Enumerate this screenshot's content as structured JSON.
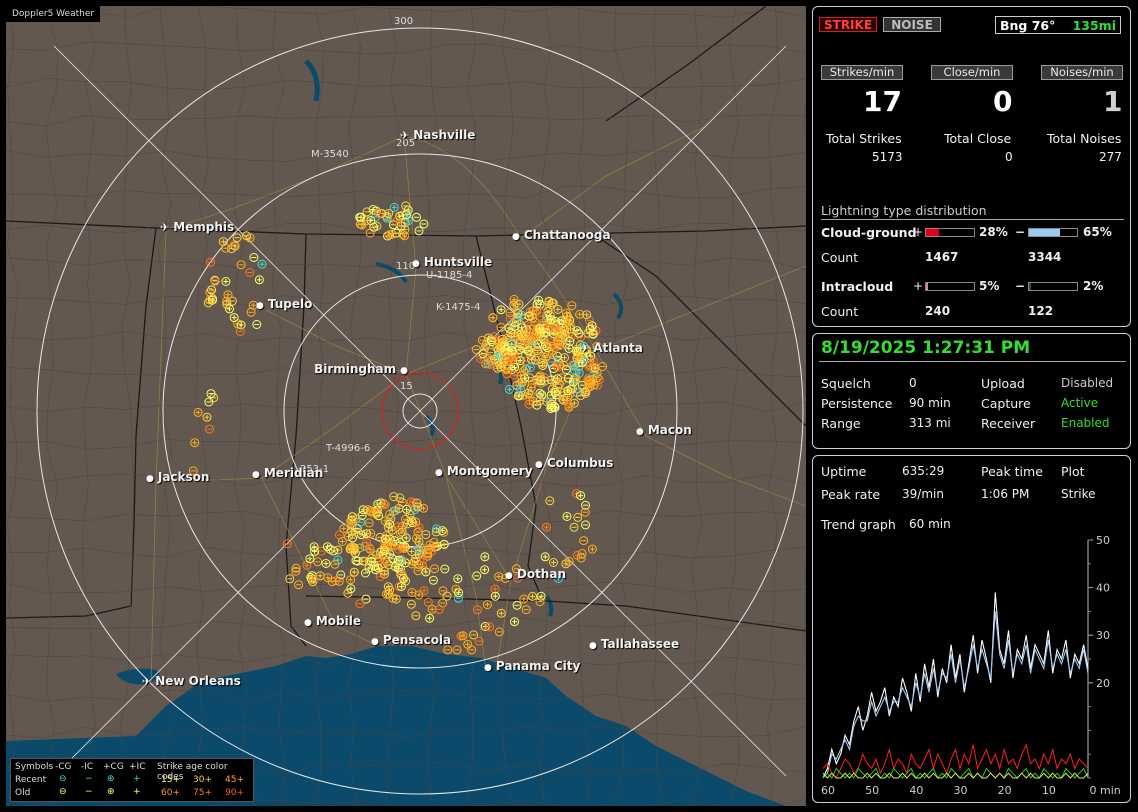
{
  "app": {
    "title": "Doppler5 Weather"
  },
  "map": {
    "range_labels": [
      "300",
      "205",
      "110",
      "15"
    ],
    "cities": [
      {
        "name": "Nashville",
        "airport": true
      },
      {
        "name": "Chattanooga",
        "airport": false
      },
      {
        "name": "Memphis",
        "airport": true
      },
      {
        "name": "Huntsville",
        "airport": false
      },
      {
        "name": "Tupelo",
        "airport": false
      },
      {
        "name": "Birmingham",
        "airport": false
      },
      {
        "name": "Atlanta",
        "airport": true
      },
      {
        "name": "Macon",
        "airport": false
      },
      {
        "name": "Jackson",
        "airport": false
      },
      {
        "name": "Meridian",
        "airport": false
      },
      {
        "name": "Montgomery",
        "airport": false
      },
      {
        "name": "Columbus",
        "airport": false
      },
      {
        "name": "Dothan",
        "airport": false
      },
      {
        "name": "Mobile",
        "airport": false
      },
      {
        "name": "Pensacola",
        "airport": false
      },
      {
        "name": "Tallahassee",
        "airport": false
      },
      {
        "name": "Panama City",
        "airport": false
      },
      {
        "name": "New Orleans",
        "airport": true
      }
    ],
    "cell_labels": [
      "M-3540",
      "U-1185-4",
      "K-1475-4",
      "T-4996-6",
      "253-1"
    ]
  },
  "legend": {
    "symbols_label": "Symbols",
    "types": [
      "-CG",
      "-IC",
      "+CG",
      "+IC"
    ],
    "age_title": "Strike age color codes",
    "recent_label": "Recent",
    "old_label": "Old",
    "recent_ages": [
      "15+",
      "30+",
      "45+"
    ],
    "old_ages": [
      "60+",
      "75+",
      "90+"
    ]
  },
  "status": {
    "strike_label": "STRIKE",
    "noise_label": "NOISE",
    "bearing_label": "Bng 76°",
    "distance_label": "135mi"
  },
  "rates": {
    "strikes_label": "Strikes/min",
    "strikes_value": "17",
    "close_label": "Close/min",
    "close_value": "0",
    "noises_label": "Noises/min",
    "noises_value": "1"
  },
  "totals": {
    "strikes_label": "Total Strikes",
    "strikes_value": "5173",
    "close_label": "Total Close",
    "close_value": "0",
    "noises_label": "Total Noises",
    "noises_value": "277"
  },
  "distribution": {
    "title": "Lightning type distribution",
    "cg_label": "Cloud-ground",
    "ic_label": "Intracloud",
    "count_label": "Count",
    "plus": "+",
    "minus": "−",
    "cg_pos_pct": "28%",
    "cg_pos_frac": 0.28,
    "cg_pos_count": "1467",
    "cg_neg_pct": "65%",
    "cg_neg_frac": 0.65,
    "cg_neg_count": "3344",
    "ic_pos_pct": "5%",
    "ic_pos_frac": 0.05,
    "ic_pos_count": "240",
    "ic_neg_pct": "2%",
    "ic_neg_frac": 0.02,
    "ic_neg_count": "122"
  },
  "datetime": "8/19/2025 1:27:31 PM",
  "settings": {
    "squelch_label": "Squelch",
    "squelch_value": "0",
    "persistence_label": "Persistence",
    "persistence_value": "90 min",
    "range_label": "Range",
    "range_value": "313 mi",
    "upload_label": "Upload",
    "upload_value": "Disabled",
    "capture_label": "Capture",
    "capture_value": "Active",
    "receiver_label": "Receiver",
    "receiver_value": "Enabled"
  },
  "stats": {
    "uptime_label": "Uptime",
    "uptime_value": "635:29",
    "peak_time_label": "Peak time",
    "peak_time_value": "1:06 PM",
    "plot_label": "Plot",
    "plot_value": "Strike",
    "peak_rate_label": "Peak rate",
    "peak_rate_value": "39/min",
    "trend_label": "Trend graph",
    "trend_value": "60 min"
  },
  "colors": {
    "map_land": "#625850",
    "water": "#0b4a6a",
    "active_green": "#33dd33",
    "cg_pos_bar": "#e0001a",
    "cg_neg_bar": "#99ccf5",
    "ic_pos_bar": "#e87aa6",
    "ic_neg_bar": "#1a5c2a",
    "strike_recent": "#ffff66",
    "strike_mid": "#ffb020",
    "strike_old": "#ff7a1a"
  },
  "chart_data": {
    "type": "line",
    "title": "",
    "xlabel": "min",
    "x_ticks": [
      "60",
      "50",
      "40",
      "30",
      "20",
      "10",
      "0"
    ],
    "y_ticks": [
      "50",
      "40",
      "30",
      "20"
    ],
    "xlim": [
      60,
      0
    ],
    "ylim": [
      0,
      50
    ],
    "x_minutes_ago": [
      60,
      59,
      58,
      57,
      56,
      55,
      54,
      53,
      52,
      51,
      50,
      49,
      48,
      47,
      46,
      45,
      44,
      43,
      42,
      41,
      40,
      39,
      38,
      37,
      36,
      35,
      34,
      33,
      32,
      31,
      30,
      29,
      28,
      27,
      26,
      25,
      24,
      23,
      22,
      21,
      20,
      19,
      18,
      17,
      16,
      15,
      14,
      13,
      12,
      11,
      10,
      9,
      8,
      7,
      6,
      5,
      4,
      3,
      2,
      1,
      0
    ],
    "series": [
      {
        "values": [
          0,
          2,
          6,
          3,
          5,
          9,
          7,
          12,
          15,
          10,
          13,
          18,
          14,
          16,
          19,
          13,
          17,
          15,
          21,
          18,
          14,
          22,
          16,
          24,
          19,
          25,
          17,
          23,
          20,
          28,
          21,
          26,
          18,
          24,
          30,
          22,
          29,
          25,
          20,
          39,
          27,
          24,
          31,
          21,
          27,
          25,
          30,
          23,
          28,
          26,
          24,
          31,
          22,
          27,
          25,
          29,
          21,
          26,
          24,
          28,
          23
        ],
        "color": "#ffffff"
      },
      {
        "values": [
          0,
          1,
          5,
          4,
          6,
          8,
          6,
          11,
          13,
          12,
          12,
          16,
          13,
          15,
          17,
          14,
          16,
          16,
          19,
          17,
          15,
          20,
          17,
          22,
          18,
          23,
          18,
          22,
          21,
          26,
          20,
          25,
          19,
          23,
          28,
          23,
          27,
          24,
          21,
          35,
          26,
          23,
          29,
          22,
          26,
          24,
          28,
          22,
          27,
          25,
          23,
          29,
          23,
          26,
          24,
          27,
          22,
          25,
          23,
          27,
          22
        ],
        "color": "#9fc8ee"
      },
      {
        "values": [
          2,
          3,
          1,
          0,
          2,
          4,
          3,
          1,
          2,
          5,
          3,
          2,
          4,
          1,
          3,
          6,
          2,
          4,
          3,
          1,
          5,
          3,
          2,
          4,
          6,
          2,
          5,
          3,
          1,
          4,
          6,
          2,
          5,
          3,
          7,
          2,
          4,
          6,
          3,
          5,
          2,
          6,
          3,
          4,
          2,
          5,
          7,
          3,
          4,
          2,
          5,
          3,
          6,
          2,
          4,
          3,
          5,
          2,
          4,
          3,
          2
        ],
        "color": "#ff2020"
      },
      {
        "values": [
          0,
          1,
          0,
          2,
          1,
          0,
          1,
          0,
          2,
          1,
          0,
          1,
          2,
          0,
          1,
          0,
          2,
          1,
          0,
          1,
          2,
          0,
          1,
          0,
          1,
          2,
          0,
          1,
          0,
          2,
          1,
          0,
          1,
          2,
          0,
          1,
          0,
          2,
          1,
          0,
          1,
          0,
          2,
          1,
          0,
          1,
          2,
          0,
          1,
          0,
          2,
          1,
          0,
          1,
          0,
          2,
          1,
          0,
          1,
          2,
          0
        ],
        "color": "#22cc22"
      },
      {
        "values": [
          1,
          0,
          1,
          0,
          0,
          1,
          0,
          1,
          0,
          0,
          1,
          0,
          1,
          0,
          0,
          1,
          0,
          0,
          1,
          0,
          1,
          0,
          0,
          1,
          0,
          1,
          0,
          0,
          1,
          0,
          1,
          0,
          0,
          1,
          0,
          1,
          0,
          0,
          1,
          0,
          1,
          0,
          1,
          0,
          0,
          1,
          0,
          1,
          0,
          0,
          1,
          0,
          1,
          0,
          0,
          1,
          0,
          1,
          0,
          0,
          1
        ],
        "color": "#e8e840"
      }
    ]
  }
}
